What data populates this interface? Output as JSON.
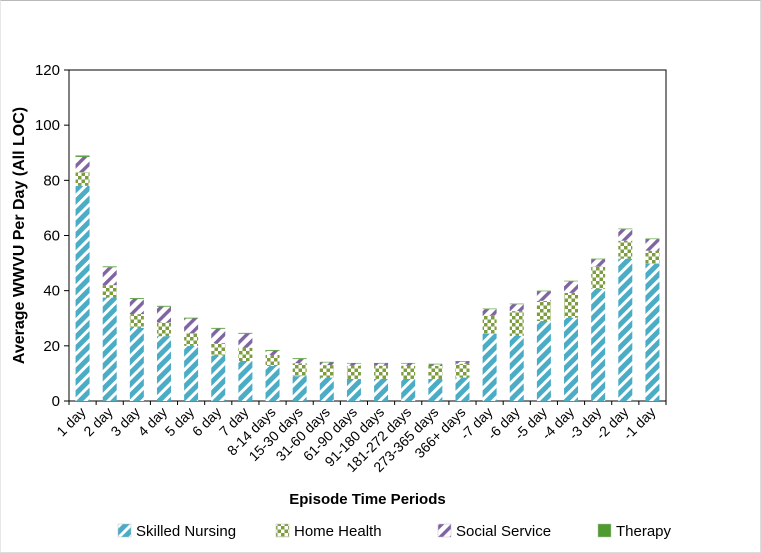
{
  "figure": {
    "background": "#ffffff",
    "border_color": "#b9b9b9"
  },
  "chart_data": {
    "type": "bar",
    "stacked": true,
    "title": "",
    "xlabel": "Episode Time Periods",
    "ylabel": "Average WWVU Per Day (All LOC)",
    "ylim": [
      0,
      120
    ],
    "yticks": [
      0,
      20,
      40,
      60,
      80,
      100,
      120
    ],
    "grid": false,
    "legend_position": "bottom",
    "categories": [
      "1 day",
      "2 day",
      "3 day",
      "4 day",
      "5 day",
      "6 day",
      "7 day",
      "8-14 days",
      "15-30 days",
      "31-60 days",
      "61-90 days",
      "91-180 days",
      "181-272 days",
      "273-365 days",
      "366+ days",
      "-7 day",
      "-6 day",
      "-5 day",
      "-4 day",
      "-3 day",
      "-2 day",
      "-1 day"
    ],
    "series": [
      {
        "name": "Skilled Nursing",
        "color": "#4BACC6",
        "pattern": "wide-diagonal-stripes",
        "values": [
          78.0,
          37.5,
          26.5,
          23.5,
          20.0,
          16.5,
          14.5,
          12.7,
          9.0,
          8.5,
          8.0,
          8.0,
          8.0,
          8.0,
          8.5,
          24.4,
          23.6,
          29.0,
          30.2,
          40.7,
          51.6,
          49.8
        ]
      },
      {
        "name": "Home Health",
        "color": "#7E9D3F",
        "pattern": "checkerboard",
        "values": [
          5.0,
          4.5,
          5.0,
          5.0,
          4.5,
          4.5,
          4.8,
          4.0,
          4.7,
          4.5,
          4.8,
          4.8,
          4.8,
          4.7,
          5.0,
          6.5,
          9.0,
          7.3,
          9.0,
          8.0,
          6.5,
          4.7
        ]
      },
      {
        "name": "Social Service",
        "color": "#8064A2",
        "pattern": "thin-diagonal-stripes",
        "values": [
          5.5,
          6.5,
          5.5,
          5.7,
          5.4,
          5.2,
          5.1,
          1.5,
          1.5,
          1.0,
          0.8,
          0.8,
          0.8,
          0.6,
          0.8,
          2.4,
          2.5,
          3.5,
          4.2,
          2.7,
          4.2,
          4.2
        ]
      },
      {
        "name": "Therapy",
        "color": "#4E9B2F",
        "pattern": "solid",
        "values": [
          0.5,
          0.3,
          0.3,
          0.3,
          0.3,
          0.3,
          0.3,
          0.3,
          0.3,
          0.2,
          0.2,
          0.2,
          0.2,
          0.2,
          0.2,
          0.2,
          0.2,
          0.2,
          0.2,
          0.2,
          0.2,
          0.2
        ]
      }
    ]
  }
}
